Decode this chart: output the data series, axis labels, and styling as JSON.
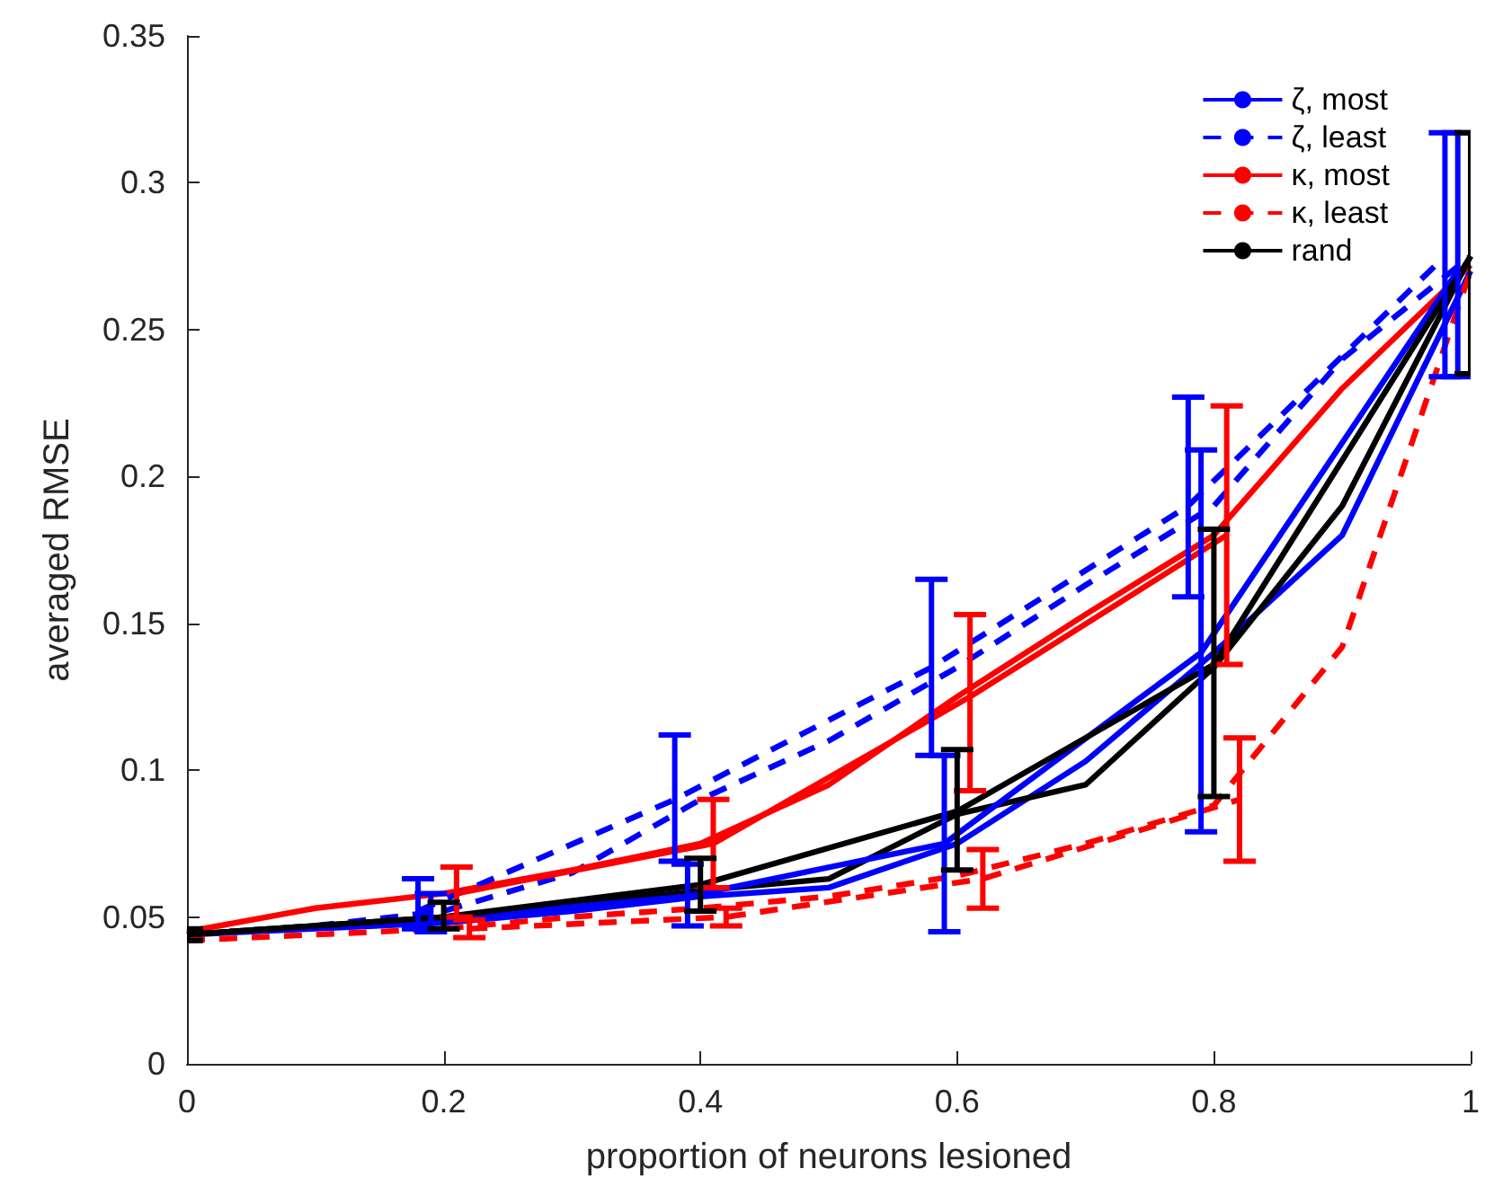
{
  "chart_data": {
    "type": "line",
    "xlabel": "proportion of neurons lesioned",
    "ylabel": "averaged RMSE",
    "xlim": [
      0,
      1
    ],
    "xticks": [
      0,
      0.2,
      0.4,
      0.6,
      0.8,
      1
    ],
    "ylim": [
      0,
      0.35
    ],
    "yticks": [
      0,
      0.05,
      0.1,
      0.15,
      0.2,
      0.25,
      0.3,
      0.35
    ],
    "grid": false,
    "legend": "top right",
    "marker": "none",
    "series": [
      {
        "name": "ζ, most",
        "color": "#0000ff",
        "line_style": "solid",
        "x": [
          0,
          0.1,
          0.2,
          0.3,
          0.4,
          0.5,
          0.6,
          0.7,
          0.8,
          0.9,
          1
        ],
        "values": [
          0.044,
          0.046,
          0.048,
          0.052,
          0.057,
          0.06,
          0.075,
          0.103,
          0.14,
          0.18,
          0.27
        ]
      },
      {
        "name": "ζ, least",
        "color": "#0000ff",
        "line_style": "dashed",
        "x": [
          0,
          0.1,
          0.2,
          0.3,
          0.4,
          0.5,
          0.6,
          0.7,
          0.8,
          0.9,
          1
        ],
        "values": [
          0.044,
          0.047,
          0.052,
          0.065,
          0.09,
          0.11,
          0.135,
          0.163,
          0.19,
          0.24,
          0.275
        ]
      },
      {
        "name": "κ, most",
        "color": "#ff0000",
        "line_style": "solid",
        "x": [
          0,
          0.1,
          0.2,
          0.3,
          0.4,
          0.5,
          0.6,
          0.7,
          0.8,
          0.9,
          1
        ],
        "values": [
          0.045,
          0.053,
          0.058,
          0.066,
          0.075,
          0.095,
          0.125,
          0.153,
          0.18,
          0.23,
          0.272
        ]
      },
      {
        "name": "κ, least",
        "color": "#ff0000",
        "line_style": "dashed",
        "x": [
          0,
          0.1,
          0.2,
          0.3,
          0.4,
          0.5,
          0.6,
          0.7,
          0.8,
          0.9,
          1
        ],
        "values": [
          0.042,
          0.044,
          0.046,
          0.05,
          0.053,
          0.057,
          0.064,
          0.075,
          0.088,
          0.142,
          0.27
        ]
      },
      {
        "name": "rand",
        "color": "#000000",
        "line_style": "solid",
        "x": [
          0,
          0.1,
          0.2,
          0.3,
          0.4,
          0.5,
          0.6,
          0.7,
          0.8,
          0.9,
          1
        ],
        "values": [
          0.044,
          0.047,
          0.05,
          0.054,
          0.059,
          0.063,
          0.085,
          0.095,
          0.135,
          0.19,
          0.275
        ]
      },
      {
        "color": "#0000ff",
        "line_style": "solid",
        "x": [
          0.19,
          0.39,
          0.59,
          0.79,
          0.99
        ],
        "values": [
          0.049,
          0.057,
          0.075,
          0.14,
          0.27
        ],
        "errors": [
          [
            0.045,
            0.058
          ],
          [
            0.047,
            0.068
          ],
          [
            0.045,
            0.105
          ],
          [
            0.079,
            0.209
          ],
          [
            0.234,
            0.317
          ]
        ]
      },
      {
        "color": "#0000ff",
        "line_style": "dashed",
        "x": [
          0.18,
          0.38,
          0.58,
          0.78,
          0.98
        ],
        "values": [
          0.052,
          0.09,
          0.135,
          0.19,
          0.275
        ],
        "errors": [
          [
            0.046,
            0.063
          ],
          [
            0.069,
            0.112
          ],
          [
            0.105,
            0.165
          ],
          [
            0.159,
            0.227
          ],
          [
            0.234,
            0.317
          ]
        ]
      },
      {
        "color": "#ff0000",
        "line_style": "solid",
        "x": [
          0.21,
          0.41,
          0.61,
          0.81
        ],
        "values": [
          0.058,
          0.075,
          0.125,
          0.18
        ],
        "errors": [
          [
            0.05,
            0.067
          ],
          [
            0.06,
            0.09
          ],
          [
            0.093,
            0.153
          ],
          [
            0.136,
            0.224
          ]
        ]
      },
      {
        "color": "#ff0000",
        "line_style": "dashed",
        "x": [
          0.22,
          0.42,
          0.62,
          0.82
        ],
        "values": [
          0.046,
          0.05,
          0.063,
          0.09
        ],
        "errors": [
          [
            0.043,
            0.049
          ],
          [
            0.047,
            0.053
          ],
          [
            0.053,
            0.073
          ],
          [
            0.069,
            0.111
          ]
        ]
      },
      {
        "color": "#000000",
        "line_style": "solid",
        "x": [
          0,
          0.2,
          0.4,
          0.6,
          0.8,
          1
        ],
        "values": [
          0.044,
          0.05,
          0.061,
          0.086,
          0.136,
          0.275
        ],
        "errors": [
          [
            0.042,
            0.046
          ],
          [
            0.046,
            0.055
          ],
          [
            0.052,
            0.07
          ],
          [
            0.066,
            0.107
          ],
          [
            0.091,
            0.182
          ],
          [
            0.235,
            0.317
          ]
        ]
      }
    ]
  }
}
